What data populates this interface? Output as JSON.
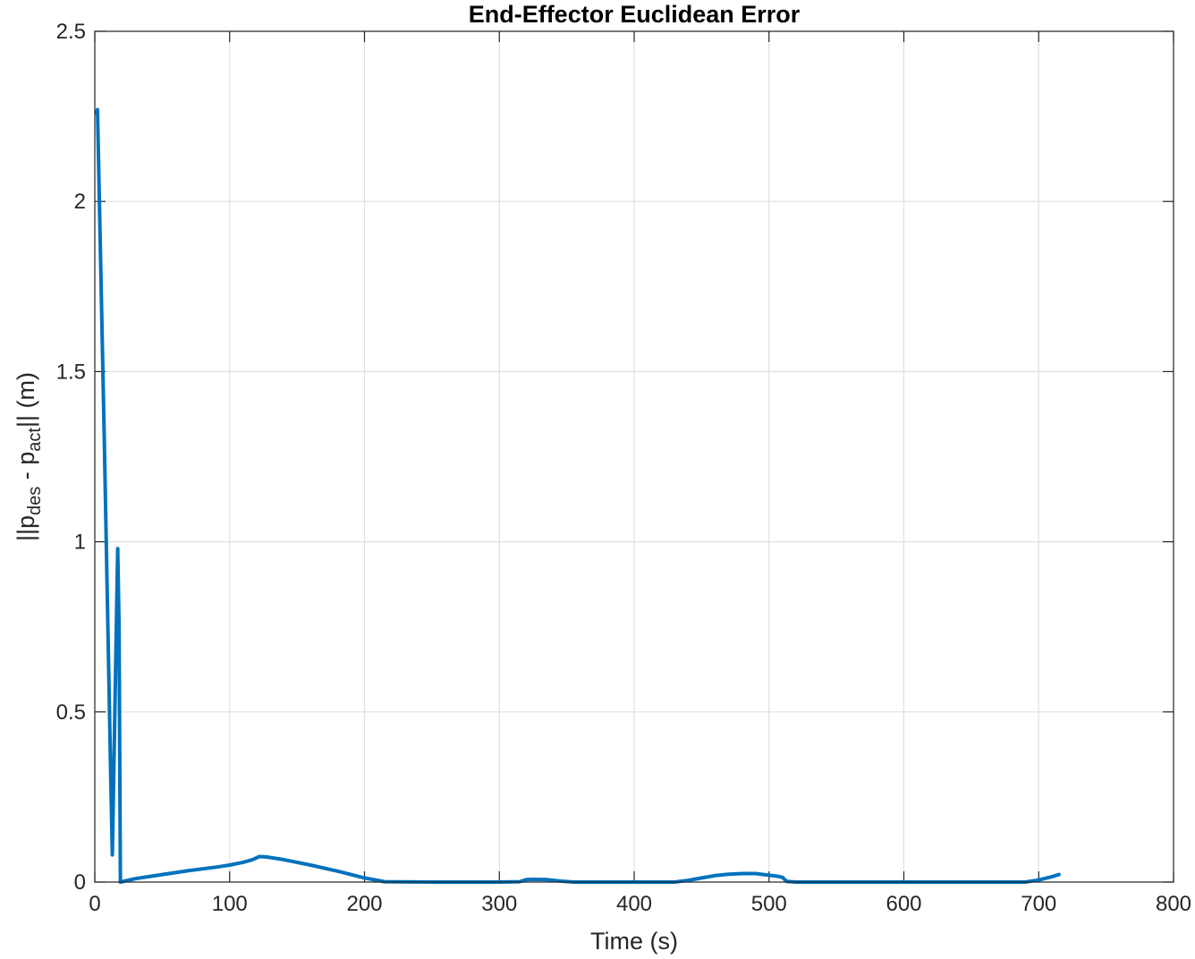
{
  "chart_data": {
    "type": "line",
    "title": "End-Effector Euclidean Error",
    "xlabel": "Time (s)",
    "ylabel": {
      "prefix": "||p",
      "sub1": "des",
      "middle": " - p",
      "sub2": "act",
      "suffix": "|| (m)"
    },
    "xlim": [
      0,
      800
    ],
    "ylim": [
      0,
      2.5
    ],
    "xticks": [
      0,
      100,
      200,
      300,
      400,
      500,
      600,
      700,
      800
    ],
    "yticks": [
      0,
      0.5,
      1,
      1.5,
      2,
      2.5
    ],
    "xtick_labels": [
      "0",
      "100",
      "200",
      "300",
      "400",
      "500",
      "600",
      "700",
      "800"
    ],
    "ytick_labels": [
      "0",
      "0.5",
      "1",
      "1.5",
      "2",
      "2.5"
    ],
    "grid": true,
    "line_color": "#0072BD",
    "series": [
      {
        "x": [
          1,
          2,
          7,
          12,
          13,
          17,
          18,
          19,
          30,
          50,
          70,
          90,
          100,
          110,
          117,
          122,
          127,
          140,
          160,
          180,
          200,
          215,
          250,
          300,
          315,
          320,
          325,
          335,
          345,
          355,
          400,
          430,
          440,
          450,
          460,
          470,
          480,
          490,
          500,
          505,
          510,
          513,
          520,
          550,
          600,
          650,
          690,
          700,
          710,
          715
        ],
        "y": [
          2.26,
          2.27,
          1.3,
          0.27,
          0.08,
          0.98,
          0.75,
          0.0,
          0.01,
          0.022,
          0.034,
          0.044,
          0.05,
          0.058,
          0.066,
          0.075,
          0.074,
          0.066,
          0.05,
          0.032,
          0.012,
          0.001,
          0.0,
          0.0,
          0.001,
          0.007,
          0.008,
          0.007,
          0.003,
          0.0,
          0.0,
          0.0,
          0.005,
          0.012,
          0.019,
          0.023,
          0.025,
          0.025,
          0.02,
          0.018,
          0.014,
          0.002,
          0.0,
          0.0,
          0.0,
          0.0,
          0.0,
          0.006,
          0.016,
          0.022
        ]
      }
    ]
  }
}
